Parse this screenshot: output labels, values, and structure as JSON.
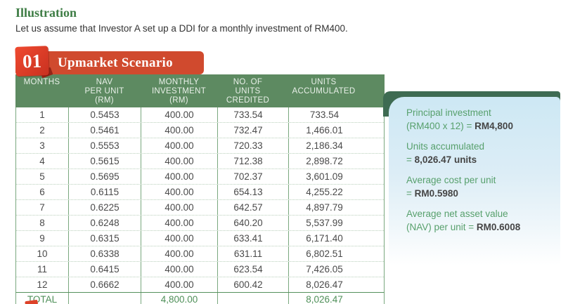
{
  "page": {
    "heading": "Illustration",
    "intro": "Let us assume that Investor A set up a DDI for a monthly investment of RM400."
  },
  "scenario": {
    "badge_number": "01",
    "title": "Upmarket Scenario"
  },
  "table": {
    "columns": [
      [
        "MONTHS"
      ],
      [
        "NAV",
        "PER UNIT",
        "(RM)"
      ],
      [
        "MONTHLY",
        "INVESTMENT",
        "(RM)"
      ],
      [
        "NO. OF",
        "UNITS",
        "CREDITED"
      ],
      [
        "UNITS",
        "ACCUMULATED"
      ]
    ],
    "rows": [
      [
        "1",
        "0.5453",
        "400.00",
        "733.54",
        "733.54"
      ],
      [
        "2",
        "0.5461",
        "400.00",
        "732.47",
        "1,466.01"
      ],
      [
        "3",
        "0.5553",
        "400.00",
        "720.33",
        "2,186.34"
      ],
      [
        "4",
        "0.5615",
        "400.00",
        "712.38",
        "2,898.72"
      ],
      [
        "5",
        "0.5695",
        "400.00",
        "702.37",
        "3,601.09"
      ],
      [
        "6",
        "0.6115",
        "400.00",
        "654.13",
        "4,255.22"
      ],
      [
        "7",
        "0.6225",
        "400.00",
        "642.57",
        "4,897.79"
      ],
      [
        "8",
        "0.6248",
        "400.00",
        "640.20",
        "5,537.99"
      ],
      [
        "9",
        "0.6315",
        "400.00",
        "633.41",
        "6,171.40"
      ],
      [
        "10",
        "0.6338",
        "400.00",
        "631.11",
        "6,802.51"
      ],
      [
        "11",
        "0.6415",
        "400.00",
        "623.54",
        "7,426.05"
      ],
      [
        "12",
        "0.6662",
        "400.00",
        "600.42",
        "8,026.47"
      ]
    ],
    "total": {
      "label": "TOTAL",
      "nav_per_unit": "",
      "monthly_investment": "4,800.00",
      "units_credited": "",
      "units_accumulated": "8,026.47"
    }
  },
  "summary": {
    "items": [
      {
        "label": "Principal investment",
        "prefix": "(RM400 x 12) = ",
        "value": "RM4,800"
      },
      {
        "label": "Units accumulated",
        "prefix": "= ",
        "value": "8,026.47 units"
      },
      {
        "label": "Average cost per unit",
        "prefix": "= ",
        "value": "RM0.5980"
      },
      {
        "label": "Average net asset value",
        "prefix": "(NAV) per unit = ",
        "value": "RM0.6008"
      }
    ]
  },
  "colors": {
    "heading_green": "#3e7d45",
    "banner_red": "#d04a2e",
    "badge_red": "#e0402b",
    "badge_fold_red": "#942517",
    "table_header_green": "#5d8a61",
    "table_border_green": "#7aa87e",
    "total_text_green": "#4e8f58",
    "row_text_gray": "#4a4a4a",
    "panel_back_green": "#3e6b52",
    "panel_blue": "#cde8f4",
    "panel_text_green": "#57a06c",
    "panel_value_dark": "#454545"
  }
}
